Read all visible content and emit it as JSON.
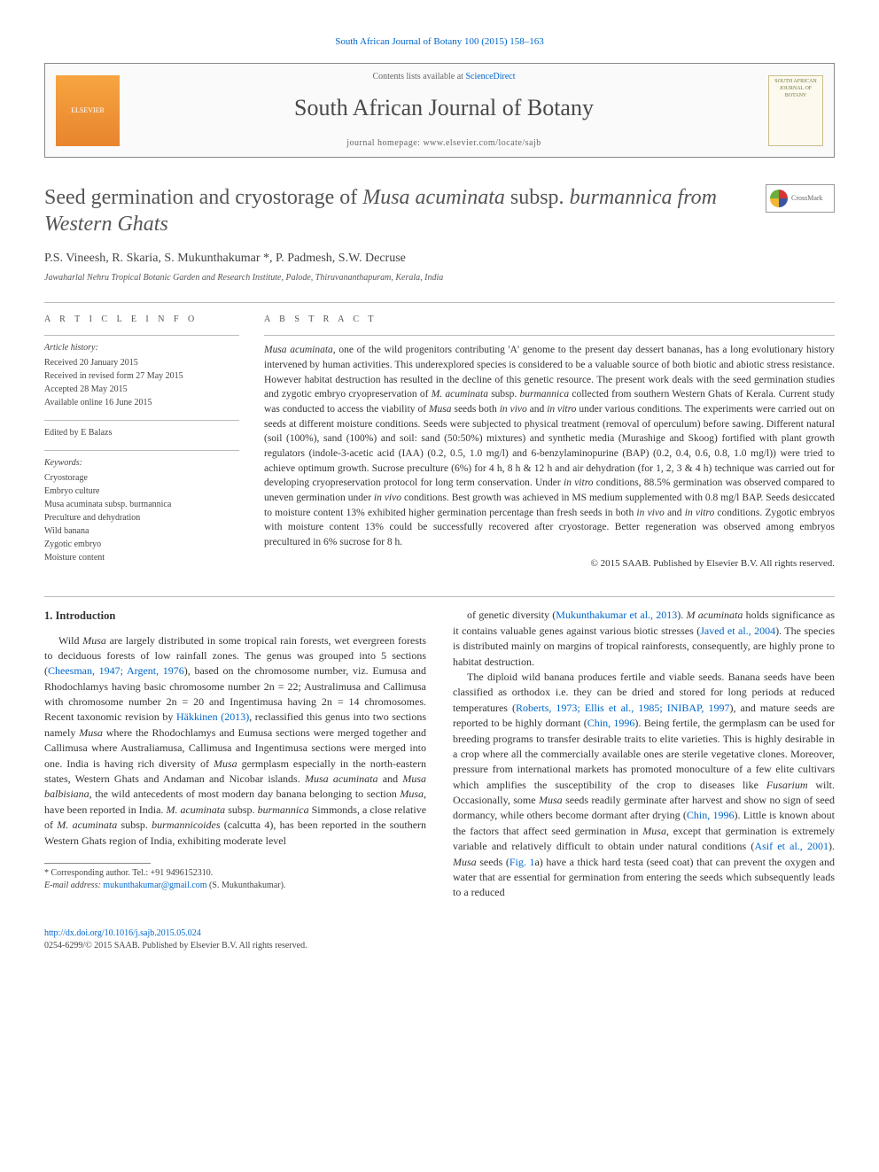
{
  "journal_ref": "South African Journal of Botany 100 (2015) 158–163",
  "header": {
    "contents_prefix": "Contents lists available at ",
    "contents_link": "ScienceDirect",
    "journal_name": "South African Journal of Botany",
    "homepage_prefix": "journal homepage: ",
    "homepage_url": "www.elsevier.com/locate/sajb",
    "elsevier_label": "ELSEVIER",
    "cover_label": "SOUTH AFRICAN JOURNAL OF BOTANY"
  },
  "title_parts": {
    "p1": "Seed germination and cryostorage of ",
    "p2": "Musa acuminata",
    "p3": " subsp. ",
    "p4": "burmannica from Western Ghats"
  },
  "crossmark_label": "CrossMark",
  "authors": "P.S. Vineesh, R. Skaria, S. Mukunthakumar *, P. Padmesh, S.W. Decruse",
  "affiliation": "Jawaharlal Nehru Tropical Botanic Garden and Research Institute, Palode, Thiruvananthapuram, Kerala, India",
  "article_info": {
    "heading": "a r t i c l e   i n f o",
    "history_label": "Article history:",
    "history": [
      "Received 20 January 2015",
      "Received in revised form 27 May 2015",
      "Accepted 28 May 2015",
      "Available online 16 June 2015"
    ],
    "edited": "Edited by E Balazs",
    "keywords_label": "Keywords:",
    "keywords": [
      "Cryostorage",
      "Embryo culture",
      "Musa acuminata subsp. burmannica",
      "Preculture and dehydration",
      "Wild banana",
      "Zygotic embryo",
      "Moisture content"
    ]
  },
  "abstract": {
    "heading": "a b s t r a c t",
    "text_parts": [
      {
        "t": "Musa acuminata",
        "i": true
      },
      {
        "t": ", one of the wild progenitors contributing 'A' genome to the present day dessert bananas, has a long evolutionary history intervened by human activities. This underexplored species is considered to be a valuable source of both biotic and abiotic stress resistance. However habitat destruction has resulted in the decline of this genetic resource. The present work deals with the seed germination studies and zygotic embryo cryopreservation of "
      },
      {
        "t": "M. acuminata",
        "i": true
      },
      {
        "t": " subsp. "
      },
      {
        "t": "burmannica",
        "i": true
      },
      {
        "t": " collected from southern Western Ghats of Kerala. Current study was conducted to access the viability of "
      },
      {
        "t": "Musa",
        "i": true
      },
      {
        "t": " seeds both "
      },
      {
        "t": "in vivo",
        "i": true
      },
      {
        "t": " and "
      },
      {
        "t": "in vitro",
        "i": true
      },
      {
        "t": " under various conditions. The experiments were carried out on seeds at different moisture conditions. Seeds were subjected to physical treatment (removal of operculum) before sawing. Different natural (soil (100%), sand (100%) and soil: sand (50:50%) mixtures) and synthetic media (Murashige and Skoog) fortified with plant growth regulators (indole-3-acetic acid (IAA) (0.2, 0.5, 1.0 mg/l) and 6-benzylaminopurine (BAP) (0.2, 0.4, 0.6, 0.8, 1.0 mg/l)) were tried to achieve optimum growth. Sucrose preculture (6%) for 4 h, 8 h & 12 h and air dehydration (for 1, 2, 3 & 4 h) technique was carried out for developing cryopreservation protocol for long term conservation. Under "
      },
      {
        "t": "in vitro",
        "i": true
      },
      {
        "t": " conditions, 88.5% germination was observed compared to uneven germination under "
      },
      {
        "t": "in vivo",
        "i": true
      },
      {
        "t": " conditions. Best growth was achieved in MS medium supplemented with 0.8 mg/l BAP. Seeds desiccated to moisture content 13% exhibited higher germination percentage than fresh seeds in both "
      },
      {
        "t": "in vivo",
        "i": true
      },
      {
        "t": " and "
      },
      {
        "t": "in vitro",
        "i": true
      },
      {
        "t": " conditions. Zygotic embryos with moisture content 13% could be successfully recovered after cryostorage. Better regeneration was observed among embryos precultured in 6% sucrose for 8 h."
      }
    ],
    "copyright": "© 2015 SAAB. Published by Elsevier B.V. All rights reserved."
  },
  "intro": {
    "heading": "1. Introduction",
    "col1_p1": "Wild Musa are largely distributed in some tropical rain forests, wet evergreen forests to deciduous forests of low rainfall zones. The genus was grouped into 5 sections (Cheesman, 1947; Argent, 1976), based on the chromosome number, viz. Eumusa and Rhodochlamys having basic chromosome number 2n = 22; Australimusa and Callimusa with chromosome number 2n = 20 and Ingentimusa having 2n = 14 chromosomes. Recent taxonomic revision by Häkkinen (2013), reclassified this genus into two sections namely Musa where the Rhodochlamys and Eumusa sections were merged together and Callimusa where Australiamusa, Callimusa and Ingentimusa sections were merged into one. India is having rich diversity of Musa germplasm especially in the north-eastern states, Western Ghats and Andaman and Nicobar islands. Musa acuminata and Musa balbisiana, the wild antecedents of most modern day banana belonging to section Musa, have been reported in India. M. acuminata subsp. burmannica Simmonds, a close relative of M. acuminata subsp. burmannicoides (calcutta 4), has been reported in the southern Western Ghats region of India, exhibiting moderate level",
    "col2_p1": "of genetic diversity (Mukunthakumar et al., 2013). M acuminata holds significance as it contains valuable genes against various biotic stresses (Javed et al., 2004). The species is distributed mainly on margins of tropical rainforests, consequently, are highly prone to habitat destruction.",
    "col2_p2": "The diploid wild banana produces fertile and viable seeds. Banana seeds have been classified as orthodox i.e. they can be dried and stored for long periods at reduced temperatures (Roberts, 1973; Ellis et al., 1985; INIBAP, 1997), and mature seeds are reported to be highly dormant (Chin, 1996). Being fertile, the germplasm can be used for breeding programs to transfer desirable traits to elite varieties. This is highly desirable in a crop where all the commercially available ones are sterile vegetative clones. Moreover, pressure from international markets has promoted monoculture of a few elite cultivars which amplifies the susceptibility of the crop to diseases like Fusarium wilt. Occasionally, some Musa seeds readily germinate after harvest and show no sign of seed dormancy, while others become dormant after drying (Chin, 1996). Little is known about the factors that affect seed germination in Musa, except that germination is extremely variable and relatively difficult to obtain under natural conditions (Asif et al., 2001). Musa seeds (Fig. 1a) have a thick hard testa (seed coat) that can prevent the oxygen and water that are essential for germination from entering the seeds which subsequently leads to a reduced"
  },
  "footnote": {
    "corr": "* Corresponding author. Tel.: +91 9496152310.",
    "email_label": "E-mail address: ",
    "email": "mukunthakumar@gmail.com",
    "email_suffix": " (S. Mukunthakumar)."
  },
  "footer": {
    "doi": "http://dx.doi.org/10.1016/j.sajb.2015.05.024",
    "issn": "0254-6299/© 2015 SAAB. Published by Elsevier B.V. All rights reserved."
  },
  "colors": {
    "link": "#0066cc",
    "text": "#333333",
    "muted": "#666666",
    "border": "#bbbbbb"
  }
}
